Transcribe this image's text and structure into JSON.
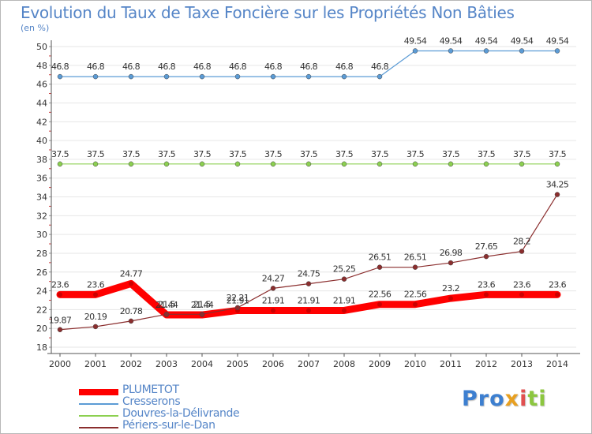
{
  "chart_data": {
    "type": "line",
    "title": "Evolution du Taux de Taxe Foncière sur les Propriétés Non Bâties",
    "ylabel": "(en %)",
    "xlabel": "",
    "ylim": [
      18,
      50
    ],
    "yticks": [
      18,
      20,
      22,
      24,
      26,
      28,
      30,
      32,
      34,
      36,
      38,
      40,
      42,
      44,
      46,
      48,
      50
    ],
    "categories": [
      "2000",
      "2001",
      "2002",
      "2003",
      "2004",
      "2005",
      "2006",
      "2007",
      "2008",
      "2009",
      "2010",
      "2011",
      "2012",
      "2013",
      "2014"
    ],
    "grid": true,
    "legend_position": "bottom-left",
    "series": [
      {
        "name": "PLUMETOT",
        "color": "#ff0000",
        "values": [
          23.6,
          23.6,
          24.77,
          21.44,
          21.44,
          21.91,
          21.91,
          21.91,
          21.91,
          22.56,
          22.56,
          23.2,
          23.6,
          23.6,
          23.6
        ],
        "labels": [
          "23.6",
          "23.6",
          "24.77",
          "21.44",
          "21.44",
          "21.91",
          "21.91",
          "21.91",
          "21.91",
          "22.56",
          "22.56",
          "23.2",
          "23.6",
          "23.6",
          "23.6"
        ]
      },
      {
        "name": "Cresserons",
        "color": "#5b9bd5",
        "values": [
          46.8,
          46.8,
          46.8,
          46.8,
          46.8,
          46.8,
          46.8,
          46.8,
          46.8,
          46.8,
          49.54,
          49.54,
          49.54,
          49.54,
          49.54
        ],
        "labels": [
          "46.8",
          "46.8",
          "46.8",
          "46.8",
          "46.8",
          "46.8",
          "46.8",
          "46.8",
          "46.8",
          "46.8",
          "49.54",
          "49.54",
          "49.54",
          "49.54",
          "49.54"
        ]
      },
      {
        "name": "Douvres-la-Délivrande",
        "color": "#8cd050",
        "values": [
          37.5,
          37.5,
          37.5,
          37.5,
          37.5,
          37.5,
          37.5,
          37.5,
          37.5,
          37.5,
          37.5,
          37.5,
          37.5,
          37.5,
          37.5
        ],
        "labels": [
          "37.5",
          "37.5",
          "37.5",
          "37.5",
          "37.5",
          "37.5",
          "37.5",
          "37.5",
          "37.5",
          "37.5",
          "37.5",
          "37.5",
          "37.5",
          "37.5",
          "37.5"
        ]
      },
      {
        "name": "Périers-sur-le-Dan",
        "color": "#8b2e2e",
        "values": [
          19.87,
          20.19,
          20.78,
          21.5,
          21.5,
          22.21,
          24.27,
          24.75,
          25.25,
          26.51,
          26.51,
          26.98,
          27.65,
          28.2,
          34.25
        ],
        "labels": [
          "19.87",
          "20.19",
          "20.78",
          "21.5",
          "21.5",
          "22.21",
          "24.27",
          "24.75",
          "25.25",
          "26.51",
          "26.51",
          "26.98",
          "27.65",
          "28.2",
          "34.25"
        ]
      }
    ]
  },
  "logo": {
    "part1": "Pro",
    "part2": "x",
    "part3": "i",
    "part4": "ti"
  },
  "colors": {
    "grid": "#e6e6e6",
    "axis": "#555555",
    "text": "#333333",
    "title": "#5585c7"
  }
}
